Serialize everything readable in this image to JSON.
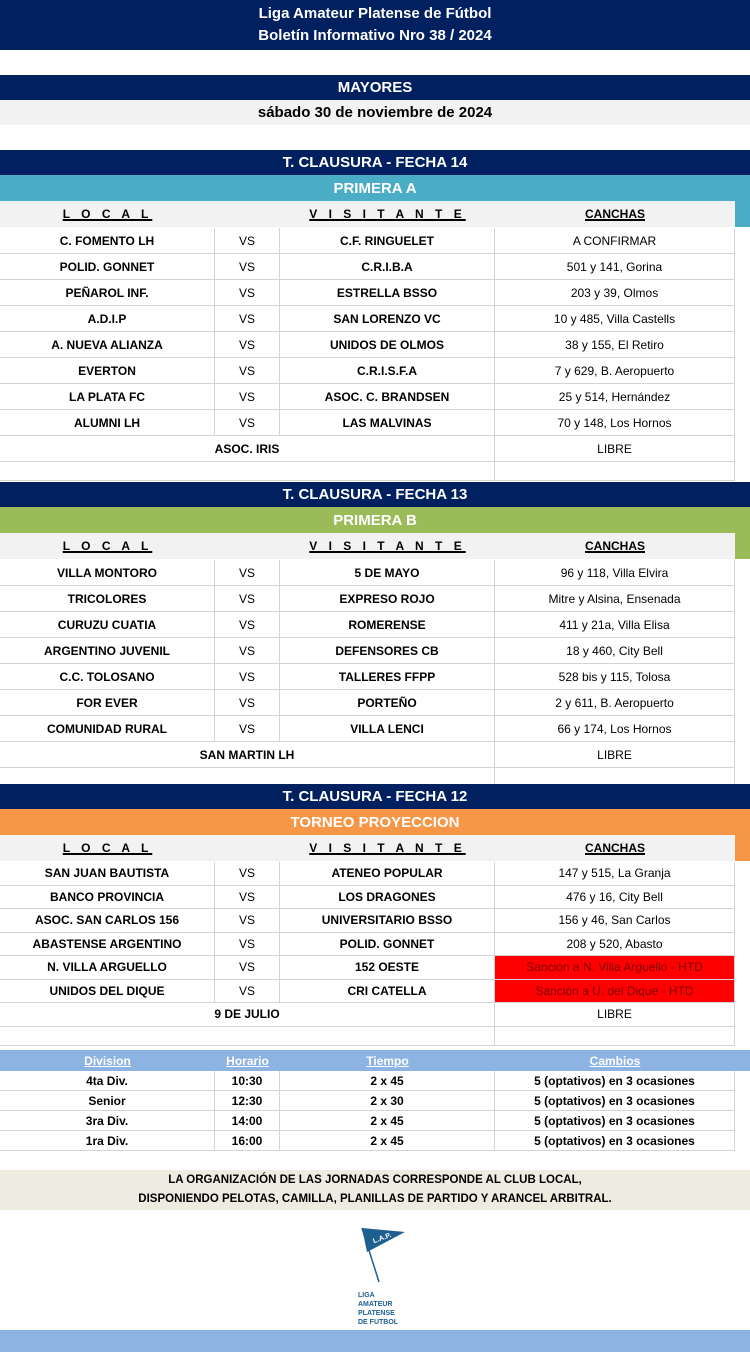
{
  "header": {
    "line1": "Liga Amateur Platense de Fútbol",
    "line2": "Boletín Informativo Nro 38 / 2024"
  },
  "category": "MAYORES",
  "date": "sábado 30 de noviembre de 2024",
  "columns": {
    "local": "L O C A L",
    "visitante": "V I S I T A N T E",
    "canchas": "CANCHAS",
    "vs": "VS"
  },
  "sections": [
    {
      "round": "T. CLAUSURA - FECHA 14",
      "division": "PRIMERA A",
      "color": "#4bacc6",
      "matches": [
        [
          "C. FOMENTO LH",
          "C.F. RINGUELET",
          "A CONFIRMAR"
        ],
        [
          "POLID. GONNET",
          "C.R.I.B.A",
          "501 y 141, Gorina"
        ],
        [
          "PEÑAROL INF.",
          "ESTRELLA BSSO",
          "203 y 39, Olmos"
        ],
        [
          "A.D.I.P",
          "SAN LORENZO VC",
          "10 y 485, Villa Castells"
        ],
        [
          "A. NUEVA ALIANZA",
          "UNIDOS DE OLMOS",
          "38 y 155, El Retiro"
        ],
        [
          "EVERTON",
          "C.R.I.S.F.A",
          "7 y 629, B. Aeropuerto"
        ],
        [
          "LA PLATA FC",
          "ASOC. C. BRANDSEN",
          "25 y 514, Hernández"
        ],
        [
          "ALUMNI LH",
          "LAS MALVINAS",
          "70 y 148, Los Hornos"
        ]
      ],
      "free": {
        "team": "ASOC. IRIS",
        "label": "LIBRE"
      }
    },
    {
      "round": "T. CLAUSURA - FECHA 13",
      "division": "PRIMERA B",
      "color": "#9bbb59",
      "matches": [
        [
          "VILLA MONTORO",
          "5 DE MAYO",
          "96 y 118, Villa Elvira"
        ],
        [
          "TRICOLORES",
          "EXPRESO ROJO",
          "Mitre y Alsina, Ensenada"
        ],
        [
          "CURUZU CUATIA",
          "ROMERENSE",
          "411 y 21a, Villa Elisa"
        ],
        [
          "ARGENTINO JUVENIL",
          "DEFENSORES CB",
          "18 y 460, City Bell"
        ],
        [
          "C.C. TOLOSANO",
          "TALLERES FFPP",
          "528 bis y 115, Tolosa"
        ],
        [
          "FOR EVER",
          "PORTEÑO",
          "2 y 611, B. Aeropuerto"
        ],
        [
          "COMUNIDAD RURAL",
          "VILLA LENCI",
          "66 y 174, Los Hornos"
        ]
      ],
      "free": {
        "team": "SAN MARTIN LH",
        "label": "LIBRE"
      }
    },
    {
      "round": "T. CLAUSURA - FECHA 12",
      "division": "TORNEO PROYECCION",
      "color": "#f79646",
      "matches": [
        [
          "SAN JUAN BAUTISTA",
          "ATENEO POPULAR",
          "147 y 515, La Granja"
        ],
        [
          "BANCO PROVINCIA",
          "LOS DRAGONES",
          "476 y 16, City Bell"
        ],
        [
          "ASOC. SAN CARLOS 156",
          "UNIVERSITARIO BSSO",
          "156 y 46, San Carlos"
        ],
        [
          "ABASTENSE ARGENTINO",
          "POLID. GONNET",
          "208 y 520, Abasto"
        ],
        [
          "N. VILLA ARGUELLO",
          "152 OESTE",
          "Sanción a N. Villa Arguello - HTD"
        ],
        [
          "UNIDOS DEL DIQUE",
          "CRI CATELLA",
          "Sanción a U. del Dique - HTD"
        ]
      ],
      "highlight_color": "#ff0000",
      "free": {
        "team": "9 DE JULIO",
        "label": "LIBRE"
      }
    }
  ],
  "divisions": {
    "headers": [
      "Division",
      "Horario",
      "Tiempo",
      "Cambios"
    ],
    "rows": [
      [
        "4ta Div.",
        "10:30",
        "2 x 45",
        "5 (optativos) en 3 ocasiones"
      ],
      [
        "Senior",
        "12:30",
        "2 x 30",
        "5 (optativos) en 3 ocasiones"
      ],
      [
        "3ra Div.",
        "14:00",
        "2 x 45",
        "5 (optativos) en 3 ocasiones"
      ],
      [
        "1ra Div.",
        "16:00",
        "2 x 45",
        "5 (optativos) en 3 ocasiones"
      ]
    ]
  },
  "notice": {
    "line1": "LA ORGANIZACIÓN DE LAS JORNADAS CORRESPONDE AL CLUB LOCAL,",
    "line2": "DISPONIENDO PELOTAS, CAMILLA, PLANILLAS DE PARTIDO Y ARANCEL ARBITRAL."
  },
  "logo": {
    "flag": "L.A.P.",
    "text": "LIGA AMATEUR PLATENSE DE FUTBOL"
  }
}
